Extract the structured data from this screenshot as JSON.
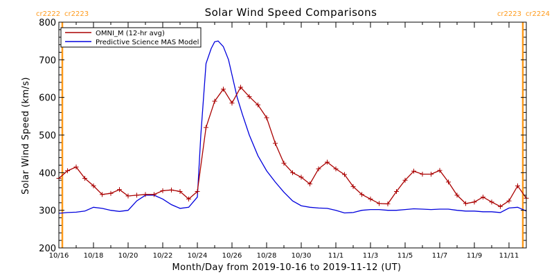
{
  "colors": {
    "omni": "#aa0000",
    "model": "#0000dd",
    "carrington": "#ff9a1a",
    "axis": "#000000",
    "background": "#ffffff"
  },
  "cr_labels": {
    "left": [
      "cr2222",
      "cr2223"
    ],
    "right": [
      "cr2223",
      "cr2224"
    ]
  },
  "chart_data": {
    "type": "line",
    "title": "Solar Wind Speed Comparisons",
    "xlabel": "Month/Day from 2019-10-16 to 2019-11-12 (UT)",
    "ylabel": "Solar Wind Speed (km/s)",
    "x_units": "days since 2019-10-16 00:00 UT",
    "xlim": [
      0,
      27
    ],
    "ylim": [
      200,
      800
    ],
    "yticks": [
      200,
      300,
      400,
      500,
      600,
      700,
      800
    ],
    "xticks": [
      {
        "x": 0,
        "label": "10/16"
      },
      {
        "x": 2,
        "label": "10/18"
      },
      {
        "x": 4,
        "label": "10/20"
      },
      {
        "x": 6,
        "label": "10/22"
      },
      {
        "x": 8,
        "label": "10/24"
      },
      {
        "x": 10,
        "label": "10/26"
      },
      {
        "x": 12,
        "label": "10/28"
      },
      {
        "x": 14,
        "label": "10/30"
      },
      {
        "x": 16,
        "label": "11/1"
      },
      {
        "x": 18,
        "label": "11/3"
      },
      {
        "x": 20,
        "label": "11/5"
      },
      {
        "x": 22,
        "label": "11/7"
      },
      {
        "x": 24,
        "label": "11/9"
      },
      {
        "x": 26,
        "label": "11/11"
      }
    ],
    "carrington_boundaries": [
      0.2,
      26.8
    ],
    "legend_position": "top-left",
    "series": [
      {
        "name": "OMNI_M (12-hr avg)",
        "style": "line+plus-markers",
        "x": [
          0,
          0.5,
          1,
          1.5,
          2,
          2.5,
          3,
          3.5,
          4,
          4.5,
          5,
          5.5,
          6,
          6.5,
          7,
          7.5,
          8,
          8.5,
          9,
          9.5,
          10,
          10.5,
          11,
          11.5,
          12,
          12.5,
          13,
          13.5,
          14,
          14.5,
          15,
          15.5,
          16,
          16.5,
          17,
          17.5,
          18,
          18.5,
          19,
          19.5,
          20,
          20.5,
          21,
          21.5,
          22,
          22.5,
          23,
          23.5,
          24,
          24.5,
          25,
          25.5,
          26,
          26.5,
          27
        ],
        "y": [
          385,
          405,
          415,
          385,
          365,
          342,
          345,
          355,
          338,
          340,
          342,
          342,
          352,
          354,
          350,
          330,
          350,
          520,
          590,
          622,
          585,
          627,
          602,
          580,
          546,
          478,
          425,
          400,
          388,
          370,
          410,
          428,
          410,
          395,
          363,
          342,
          330,
          318,
          317,
          350,
          380,
          404,
          396,
          396,
          406,
          375,
          340,
          318,
          322,
          335,
          322,
          310,
          325,
          365,
          332
        ]
      },
      {
        "name": "Predictive Science MAS Model",
        "style": "line",
        "x": [
          0,
          0.5,
          1,
          1.5,
          2,
          2.5,
          3,
          3.5,
          4,
          4.5,
          5,
          5.5,
          6,
          6.5,
          7,
          7.5,
          8,
          8.2,
          8.5,
          8.8,
          9,
          9.2,
          9.5,
          9.8,
          10,
          10.3,
          10.6,
          11,
          11.5,
          12,
          12.5,
          13,
          13.5,
          14,
          14.5,
          15,
          15.5,
          16,
          16.5,
          17,
          17.5,
          18,
          18.5,
          19,
          19.5,
          20,
          20.5,
          21,
          21.5,
          22,
          22.5,
          23,
          23.5,
          24,
          24.5,
          25,
          25.5,
          26,
          26.5,
          27
        ],
        "y": [
          292,
          294,
          295,
          298,
          308,
          305,
          300,
          297,
          300,
          325,
          340,
          340,
          330,
          315,
          305,
          308,
          335,
          500,
          690,
          730,
          748,
          750,
          735,
          700,
          660,
          600,
          555,
          500,
          445,
          405,
          375,
          348,
          325,
          312,
          308,
          306,
          305,
          300,
          293,
          294,
          300,
          302,
          302,
          300,
          300,
          302,
          304,
          303,
          302,
          303,
          303,
          300,
          298,
          298,
          296,
          296,
          294,
          306,
          308,
          298
        ]
      }
    ]
  }
}
